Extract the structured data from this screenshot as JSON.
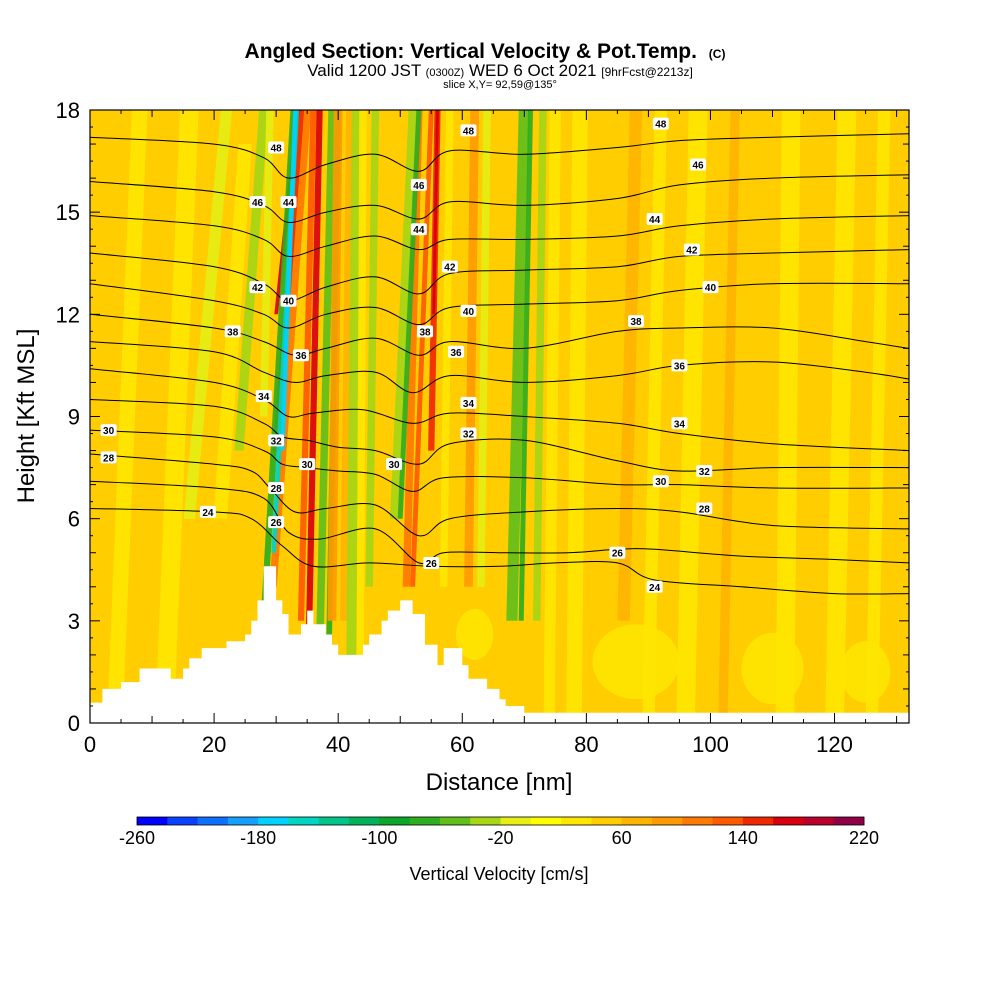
{
  "header": {
    "title_main": "Angled Section: Vertical Velocity & Pot.Temp.",
    "title_mark": "(C)",
    "valid_prefix": "Valid 1200 JST",
    "valid_utc": "(0300Z)",
    "valid_date": "WED 6 Oct 2021",
    "valid_fcst": "[9hrFcst@2213z]",
    "slice": "slice X,Y= 92,59@135°"
  },
  "chart_data": {
    "type": "heatmap",
    "title": "Angled Section: Vertical Velocity & Pot.Temp.",
    "xlabel": "Distance [nm]",
    "ylabel": "Height [Kft MSL]",
    "xlim": [
      0,
      132
    ],
    "ylim": [
      0,
      18
    ],
    "x_ticks": [
      0,
      20,
      40,
      60,
      80,
      100,
      120
    ],
    "y_ticks": [
      0,
      3,
      6,
      9,
      12,
      15,
      18
    ],
    "colorbar": {
      "label": "Vertical Velocity [cm/s]",
      "tick_values": [
        -260,
        -180,
        -100,
        -20,
        60,
        140,
        220
      ],
      "levels": [
        -260,
        -240,
        -220,
        -200,
        -180,
        -160,
        -140,
        -120,
        -100,
        -80,
        -60,
        -40,
        -20,
        0,
        20,
        40,
        60,
        80,
        100,
        120,
        140,
        160,
        180,
        200,
        220
      ],
      "colors": [
        "#0000ff",
        "#0a40ff",
        "#0f70ff",
        "#15a0ff",
        "#00d2ff",
        "#00d6c2",
        "#00c48a",
        "#00b35a",
        "#0ca62a",
        "#2fae1f",
        "#62bf1a",
        "#a6d616",
        "#e6ee14",
        "#ffff00",
        "#ffe600",
        "#ffcd00",
        "#ffb400",
        "#ff9b00",
        "#ff7a00",
        "#ff5a00",
        "#f02800",
        "#d80010",
        "#b8002a",
        "#900046",
        "#6a0082"
      ]
    },
    "terrain": [
      [
        0,
        0.6
      ],
      [
        2,
        0.6
      ],
      [
        2,
        1.0
      ],
      [
        5,
        1.0
      ],
      [
        5,
        1.2
      ],
      [
        8,
        1.2
      ],
      [
        8,
        1.6
      ],
      [
        13,
        1.6
      ],
      [
        13,
        1.3
      ],
      [
        15,
        1.3
      ],
      [
        15,
        1.6
      ],
      [
        16,
        1.6
      ],
      [
        16,
        1.9
      ],
      [
        18,
        1.9
      ],
      [
        18,
        2.2
      ],
      [
        22,
        2.2
      ],
      [
        22,
        2.4
      ],
      [
        25,
        2.4
      ],
      [
        25,
        2.6
      ],
      [
        26,
        2.6
      ],
      [
        26,
        3.0
      ],
      [
        27,
        3.0
      ],
      [
        27,
        3.6
      ],
      [
        28,
        3.6
      ],
      [
        28,
        4.6
      ],
      [
        30,
        4.6
      ],
      [
        30,
        3.6
      ],
      [
        31,
        3.6
      ],
      [
        31,
        3.2
      ],
      [
        32,
        3.2
      ],
      [
        32,
        2.6
      ],
      [
        34,
        2.6
      ],
      [
        34,
        2.9
      ],
      [
        35,
        2.9
      ],
      [
        35,
        3.3
      ],
      [
        36,
        3.3
      ],
      [
        36,
        2.9
      ],
      [
        38,
        2.9
      ],
      [
        38,
        2.6
      ],
      [
        39,
        2.6
      ],
      [
        39,
        2.3
      ],
      [
        40,
        2.3
      ],
      [
        40,
        2.0
      ],
      [
        44,
        2.0
      ],
      [
        44,
        2.3
      ],
      [
        45,
        2.3
      ],
      [
        45,
        2.6
      ],
      [
        47,
        2.6
      ],
      [
        47,
        3.0
      ],
      [
        48,
        3.0
      ],
      [
        48,
        3.3
      ],
      [
        50,
        3.3
      ],
      [
        50,
        3.6
      ],
      [
        52,
        3.6
      ],
      [
        52,
        3.2
      ],
      [
        54,
        3.2
      ],
      [
        54,
        2.3
      ],
      [
        56,
        2.3
      ],
      [
        56,
        1.7
      ],
      [
        57,
        1.7
      ],
      [
        57,
        2.2
      ],
      [
        60,
        2.2
      ],
      [
        60,
        1.7
      ],
      [
        61,
        1.7
      ],
      [
        61,
        1.3
      ],
      [
        64,
        1.3
      ],
      [
        64,
        1.0
      ],
      [
        66,
        1.0
      ],
      [
        66,
        0.7
      ],
      [
        67,
        0.7
      ],
      [
        67,
        0.5
      ],
      [
        70,
        0.5
      ],
      [
        70,
        0.3
      ],
      [
        132,
        0.3
      ],
      [
        132,
        0
      ],
      [
        0,
        0
      ]
    ],
    "series": [
      {
        "theta": 24,
        "points": [
          [
            0,
            6.3
          ],
          [
            20,
            6.2
          ],
          [
            26,
            6.0
          ],
          [
            31,
            5.2
          ],
          [
            36,
            4.6
          ],
          [
            45,
            4.7
          ],
          [
            55,
            4.6
          ],
          [
            66,
            4.6
          ],
          [
            75,
            4.7
          ],
          [
            85,
            4.7
          ],
          [
            91,
            4.2
          ],
          [
            105,
            4.0
          ],
          [
            120,
            3.8
          ],
          [
            132,
            3.8
          ]
        ]
      },
      {
        "theta": 26,
        "points": [
          [
            0,
            7.1
          ],
          [
            20,
            6.9
          ],
          [
            28,
            6.6
          ],
          [
            32,
            5.6
          ],
          [
            37,
            5.4
          ],
          [
            46,
            5.7
          ],
          [
            53,
            4.7
          ],
          [
            57,
            5.0
          ],
          [
            66,
            5.0
          ],
          [
            77,
            5.0
          ],
          [
            85,
            5.1
          ],
          [
            91,
            5.1
          ],
          [
            105,
            4.9
          ],
          [
            120,
            4.8
          ],
          [
            132,
            4.7
          ]
        ]
      },
      {
        "theta": 28,
        "points": [
          [
            0,
            7.9
          ],
          [
            20,
            7.6
          ],
          [
            26,
            7.4
          ],
          [
            29,
            6.9
          ],
          [
            33,
            6.2
          ],
          [
            38,
            6.3
          ],
          [
            46,
            6.4
          ],
          [
            53,
            5.5
          ],
          [
            58,
            6.0
          ],
          [
            70,
            6.2
          ],
          [
            85,
            6.3
          ],
          [
            95,
            6.2
          ],
          [
            110,
            5.8
          ],
          [
            132,
            5.7
          ]
        ]
      },
      {
        "theta": 30,
        "points": [
          [
            0,
            8.6
          ],
          [
            20,
            8.4
          ],
          [
            28,
            8.0
          ],
          [
            31,
            7.6
          ],
          [
            35,
            7.5
          ],
          [
            40,
            7.4
          ],
          [
            46,
            7.3
          ],
          [
            52,
            6.8
          ],
          [
            57,
            7.2
          ],
          [
            70,
            7.2
          ],
          [
            85,
            7.0
          ],
          [
            95,
            7.0
          ],
          [
            110,
            6.9
          ],
          [
            132,
            6.9
          ]
        ]
      },
      {
        "theta": 32,
        "points": [
          [
            0,
            9.5
          ],
          [
            20,
            9.3
          ],
          [
            28,
            8.8
          ],
          [
            31,
            8.4
          ],
          [
            35,
            8.3
          ],
          [
            40,
            8.1
          ],
          [
            46,
            8.0
          ],
          [
            53,
            7.6
          ],
          [
            58,
            8.2
          ],
          [
            70,
            8.3
          ],
          [
            85,
            7.7
          ],
          [
            95,
            7.4
          ],
          [
            110,
            7.5
          ],
          [
            132,
            7.5
          ]
        ]
      },
      {
        "theta": 34,
        "points": [
          [
            0,
            10.4
          ],
          [
            20,
            10.0
          ],
          [
            28,
            9.5
          ],
          [
            32,
            9.0
          ],
          [
            36,
            9.1
          ],
          [
            44,
            9.2
          ],
          [
            52,
            8.8
          ],
          [
            58,
            9.1
          ],
          [
            70,
            9.0
          ],
          [
            85,
            8.8
          ],
          [
            95,
            8.5
          ],
          [
            110,
            8.2
          ],
          [
            132,
            8.0
          ]
        ]
      },
      {
        "theta": 36,
        "points": [
          [
            0,
            11.2
          ],
          [
            20,
            10.9
          ],
          [
            28,
            10.3
          ],
          [
            33,
            10.0
          ],
          [
            38,
            10.2
          ],
          [
            46,
            10.3
          ],
          [
            52,
            9.7
          ],
          [
            58,
            10.2
          ],
          [
            70,
            10.0
          ],
          [
            85,
            10.2
          ],
          [
            95,
            10.5
          ],
          [
            110,
            10.6
          ],
          [
            125,
            10.3
          ],
          [
            132,
            10.1
          ]
        ]
      },
      {
        "theta": 38,
        "points": [
          [
            0,
            12.0
          ],
          [
            20,
            11.6
          ],
          [
            28,
            11.2
          ],
          [
            33,
            10.8
          ],
          [
            38,
            11.0
          ],
          [
            46,
            11.3
          ],
          [
            53,
            10.8
          ],
          [
            58,
            11.2
          ],
          [
            70,
            11.0
          ],
          [
            85,
            11.5
          ],
          [
            95,
            11.6
          ],
          [
            110,
            11.6
          ],
          [
            125,
            11.2
          ],
          [
            132,
            11.0
          ]
        ]
      },
      {
        "theta": 40,
        "points": [
          [
            0,
            12.9
          ],
          [
            20,
            12.4
          ],
          [
            28,
            12.0
          ],
          [
            32,
            11.6
          ],
          [
            38,
            12.0
          ],
          [
            46,
            12.2
          ],
          [
            53,
            11.7
          ],
          [
            58,
            12.2
          ],
          [
            70,
            12.3
          ],
          [
            85,
            12.4
          ],
          [
            95,
            12.7
          ],
          [
            110,
            12.9
          ],
          [
            132,
            12.9
          ]
        ]
      },
      {
        "theta": 42,
        "points": [
          [
            0,
            13.8
          ],
          [
            20,
            13.4
          ],
          [
            28,
            12.9
          ],
          [
            32,
            12.4
          ],
          [
            38,
            12.8
          ],
          [
            46,
            13.1
          ],
          [
            53,
            12.6
          ],
          [
            58,
            13.2
          ],
          [
            70,
            13.3
          ],
          [
            85,
            13.4
          ],
          [
            95,
            13.7
          ],
          [
            110,
            13.8
          ],
          [
            132,
            13.9
          ]
        ]
      },
      {
        "theta": 44,
        "points": [
          [
            0,
            14.9
          ],
          [
            20,
            14.6
          ],
          [
            28,
            14.2
          ],
          [
            32,
            13.7
          ],
          [
            38,
            14.0
          ],
          [
            46,
            14.3
          ],
          [
            53,
            13.9
          ],
          [
            58,
            14.2
          ],
          [
            70,
            14.2
          ],
          [
            85,
            14.3
          ],
          [
            95,
            14.6
          ],
          [
            110,
            14.8
          ],
          [
            132,
            14.9
          ]
        ]
      },
      {
        "theta": 46,
        "points": [
          [
            0,
            15.9
          ],
          [
            20,
            15.6
          ],
          [
            28,
            15.2
          ],
          [
            32,
            14.7
          ],
          [
            38,
            15.0
          ],
          [
            46,
            15.2
          ],
          [
            53,
            14.8
          ],
          [
            58,
            15.3
          ],
          [
            70,
            15.2
          ],
          [
            85,
            15.4
          ],
          [
            95,
            15.8
          ],
          [
            110,
            16.0
          ],
          [
            132,
            16.1
          ]
        ]
      },
      {
        "theta": 48,
        "points": [
          [
            0,
            17.2
          ],
          [
            20,
            17.0
          ],
          [
            28,
            16.6
          ],
          [
            32,
            16.0
          ],
          [
            38,
            16.4
          ],
          [
            46,
            16.7
          ],
          [
            53,
            16.2
          ],
          [
            58,
            16.8
          ],
          [
            70,
            16.7
          ],
          [
            85,
            16.9
          ],
          [
            95,
            17.1
          ],
          [
            110,
            17.2
          ],
          [
            132,
            17.3
          ]
        ]
      }
    ],
    "contour_labels": [
      {
        "text": "24",
        "x": 19,
        "y": 6.2
      },
      {
        "text": "24",
        "x": 91,
        "y": 4.0
      },
      {
        "text": "26",
        "x": 30,
        "y": 5.9
      },
      {
        "text": "26",
        "x": 55,
        "y": 4.7
      },
      {
        "text": "26",
        "x": 85,
        "y": 5.0
      },
      {
        "text": "28",
        "x": 3,
        "y": 7.8
      },
      {
        "text": "28",
        "x": 30,
        "y": 6.9
      },
      {
        "text": "28",
        "x": 99,
        "y": 6.3
      },
      {
        "text": "30",
        "x": 3,
        "y": 8.6
      },
      {
        "text": "30",
        "x": 35,
        "y": 7.6
      },
      {
        "text": "30",
        "x": 49,
        "y": 7.6
      },
      {
        "text": "30",
        "x": 92,
        "y": 7.1
      },
      {
        "text": "32",
        "x": 30,
        "y": 8.3
      },
      {
        "text": "32",
        "x": 61,
        "y": 8.5
      },
      {
        "text": "32",
        "x": 99,
        "y": 7.4
      },
      {
        "text": "34",
        "x": 28,
        "y": 9.6
      },
      {
        "text": "34",
        "x": 61,
        "y": 9.4
      },
      {
        "text": "34",
        "x": 95,
        "y": 8.8
      },
      {
        "text": "36",
        "x": 34,
        "y": 10.8
      },
      {
        "text": "36",
        "x": 59,
        "y": 10.9
      },
      {
        "text": "36",
        "x": 95,
        "y": 10.5
      },
      {
        "text": "38",
        "x": 23,
        "y": 11.5
      },
      {
        "text": "38",
        "x": 54,
        "y": 11.5
      },
      {
        "text": "38",
        "x": 88,
        "y": 11.8
      },
      {
        "text": "40",
        "x": 32,
        "y": 12.4
      },
      {
        "text": "40",
        "x": 61,
        "y": 12.1
      },
      {
        "text": "40",
        "x": 100,
        "y": 12.8
      },
      {
        "text": "42",
        "x": 27,
        "y": 12.8
      },
      {
        "text": "42",
        "x": 58,
        "y": 13.4
      },
      {
        "text": "42",
        "x": 97,
        "y": 13.9
      },
      {
        "text": "44",
        "x": 32,
        "y": 15.3
      },
      {
        "text": "44",
        "x": 53,
        "y": 14.5
      },
      {
        "text": "44",
        "x": 91,
        "y": 14.8
      },
      {
        "text": "46",
        "x": 27,
        "y": 15.3
      },
      {
        "text": "46",
        "x": 53,
        "y": 15.8
      },
      {
        "text": "46",
        "x": 98,
        "y": 16.4
      },
      {
        "text": "48",
        "x": 30,
        "y": 16.9
      },
      {
        "text": "48",
        "x": 61,
        "y": 17.4
      },
      {
        "text": "48",
        "x": 92,
        "y": 17.6
      }
    ]
  }
}
